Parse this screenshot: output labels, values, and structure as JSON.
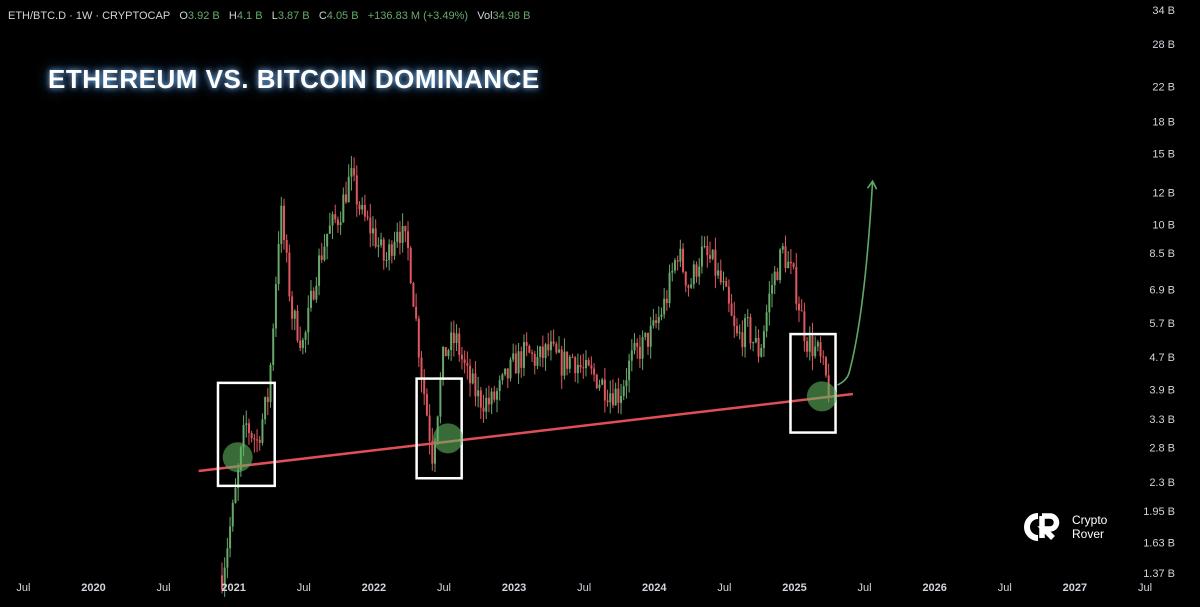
{
  "header": {
    "symbol": "ETH/BTC.D · 1W · CRYPTOCAP",
    "o_label": "O",
    "o_value": "3.92 B",
    "h_label": "H",
    "h_value": "4.1 B",
    "l_label": "L",
    "l_value": "3.87 B",
    "c_label": "C",
    "c_value": "4.05 B",
    "change": "+136.83 M (+3.49%)",
    "vol_label": "Vol",
    "vol_value": "34.98 B"
  },
  "title": "ETHEREUM VS. BITCOIN DOMINANCE",
  "logo": {
    "line1": "Crypto",
    "line2": "Rover"
  },
  "colors": {
    "up": "#67a86b",
    "down": "#e0585f",
    "trendline": "#e04f58",
    "highlight": "#5fb25f",
    "box": "#ffffff",
    "arrow": "#5fa86a"
  },
  "chart_data": {
    "type": "candlestick",
    "scale": "log",
    "y_tick_labels": [
      "34 B",
      "28 B",
      "22 B",
      "18 B",
      "15 B",
      "12 B",
      "10 B",
      "8.5 B",
      "6.9 B",
      "5.7 B",
      "4.7 B",
      "3.9 B",
      "3.3 B",
      "2.8 B",
      "2.3 B",
      "1.95 B",
      "1.63 B",
      "1.37 B"
    ],
    "y_ticks": [
      34,
      28,
      22,
      18,
      15,
      12,
      10,
      8.5,
      6.9,
      5.7,
      4.7,
      3.9,
      3.3,
      2.8,
      2.3,
      1.95,
      1.63,
      1.37
    ],
    "x_tick_labels": [
      "Jul",
      "2020",
      "Jul",
      "2021",
      "Jul",
      "2022",
      "Jul",
      "2023",
      "Jul",
      "2024",
      "Jul",
      "2025",
      "Jul",
      "2026",
      "Jul",
      "2027",
      "Jul"
    ],
    "x_ticks": [
      "2019-07",
      "2020-01",
      "2020-07",
      "2021-01",
      "2021-07",
      "2022-01",
      "2022-07",
      "2023-01",
      "2023-07",
      "2024-01",
      "2024-07",
      "2025-01",
      "2025-07",
      "2026-01",
      "2026-07",
      "2027-01",
      "2027-07"
    ],
    "x_range": [
      "2019-05",
      "2027-07"
    ],
    "y_range": [
      1.3,
      36
    ],
    "price_path": [
      [
        "2020-12",
        1.35
      ],
      [
        "2021-01",
        2.0
      ],
      [
        "2021-02",
        3.2
      ],
      [
        "2021-03",
        2.9
      ],
      [
        "2021-04",
        3.8
      ],
      [
        "2021-05",
        11.0
      ],
      [
        "2021-06",
        6.0
      ],
      [
        "2021-07",
        5.0
      ],
      [
        "2021-08",
        7.5
      ],
      [
        "2021-09",
        9.5
      ],
      [
        "2021-10",
        10.5
      ],
      [
        "2021-11",
        13.2
      ],
      [
        "2021-12",
        10.5
      ],
      [
        "2022-01",
        9.5
      ],
      [
        "2022-02",
        8.0
      ],
      [
        "2022-03",
        10.0
      ],
      [
        "2022-04",
        8.5
      ],
      [
        "2022-05",
        4.5
      ],
      [
        "2022-06",
        2.7
      ],
      [
        "2022-07",
        4.8
      ],
      [
        "2022-08",
        5.2
      ],
      [
        "2022-09",
        4.2
      ],
      [
        "2022-10",
        3.7
      ],
      [
        "2022-11",
        3.6
      ],
      [
        "2022-12",
        4.0
      ],
      [
        "2023-01",
        4.5
      ],
      [
        "2023-02",
        4.8
      ],
      [
        "2023-03",
        4.6
      ],
      [
        "2023-04",
        4.9
      ],
      [
        "2023-05",
        4.5
      ],
      [
        "2023-06",
        4.7
      ],
      [
        "2023-07",
        4.3
      ],
      [
        "2023-08",
        4.2
      ],
      [
        "2023-09",
        3.9
      ],
      [
        "2023-10",
        3.8
      ],
      [
        "2023-11",
        4.6
      ],
      [
        "2023-12",
        5.0
      ],
      [
        "2024-01",
        5.5
      ],
      [
        "2024-02",
        6.5
      ],
      [
        "2024-03",
        8.6
      ],
      [
        "2024-04",
        7.0
      ],
      [
        "2024-05",
        8.5
      ],
      [
        "2024-06",
        8.0
      ],
      [
        "2024-07",
        6.8
      ],
      [
        "2024-08",
        5.2
      ],
      [
        "2024-09",
        5.5
      ],
      [
        "2024-10",
        4.8
      ],
      [
        "2024-11",
        7.0
      ],
      [
        "2024-12",
        8.6
      ],
      [
        "2025-01",
        7.2
      ],
      [
        "2025-02",
        5.2
      ],
      [
        "2025-03",
        4.8
      ],
      [
        "2025-04",
        3.85
      ]
    ],
    "trendline": [
      [
        "2020-10",
        2.45
      ],
      [
        "2025-06",
        3.8
      ]
    ],
    "projection": [
      [
        "2025-04",
        4.0
      ],
      [
        "2025-05",
        4.3
      ],
      [
        "2025-06",
        6.0
      ],
      [
        "2025-07",
        12.8
      ]
    ],
    "highlight_boxes": [
      {
        "start": "2020-12",
        "end": "2021-04",
        "low": 2.25,
        "high": 4.05
      },
      {
        "start": "2022-05",
        "end": "2022-08",
        "low": 2.35,
        "high": 4.15
      },
      {
        "start": "2025-01",
        "end": "2025-04",
        "low": 3.05,
        "high": 5.35
      }
    ],
    "highlight_points": [
      [
        "2021-01",
        2.65
      ],
      [
        "2022-07",
        2.95
      ],
      [
        "2025-03",
        3.75
      ]
    ]
  }
}
